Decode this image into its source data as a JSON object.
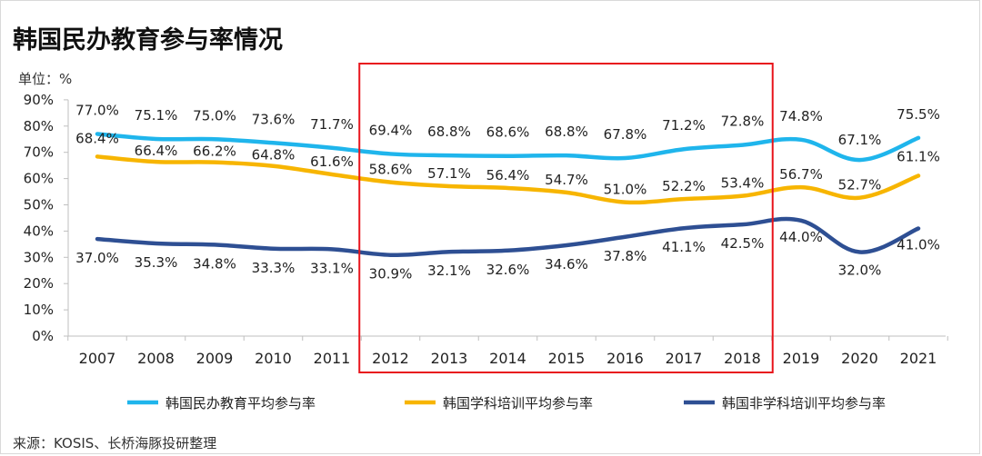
{
  "title": "韩国民办教育参与率情况",
  "unit_label": "单位：%",
  "source": "来源：KOSIS、长桥海豚投研整理",
  "chart_data": {
    "type": "line",
    "categories": [
      "2007",
      "2008",
      "2009",
      "2010",
      "2011",
      "2012",
      "2013",
      "2014",
      "2015",
      "2016",
      "2017",
      "2018",
      "2019",
      "2020",
      "2021"
    ],
    "ylim": [
      0,
      90
    ],
    "ytick_labels": [
      "0%",
      "10%",
      "20%",
      "30%",
      "40%",
      "50%",
      "60%",
      "70%",
      "80%",
      "90%"
    ],
    "series": [
      {
        "name": "韩国民办教育平均参与率",
        "color": "#1fb5ec",
        "values": [
          77.0,
          75.1,
          75.0,
          73.6,
          71.7,
          69.4,
          68.8,
          68.6,
          68.8,
          67.8,
          71.2,
          72.8,
          74.8,
          67.1,
          75.5
        ],
        "labels": [
          "77.0%",
          "75.1%",
          "75.0%",
          "73.6%",
          "71.7%",
          "69.4%",
          "68.8%",
          "68.6%",
          "68.8%",
          "67.8%",
          "71.2%",
          "72.8%",
          "74.8%",
          "67.1%",
          "75.5%"
        ]
      },
      {
        "name": "韩国学科培训平均参与率",
        "color": "#f7b500",
        "values": [
          68.4,
          66.4,
          66.2,
          64.8,
          61.6,
          58.6,
          57.1,
          56.4,
          54.7,
          51.0,
          52.2,
          53.4,
          56.7,
          52.7,
          61.1
        ],
        "labels": [
          "68.4%",
          "66.4%",
          "66.2%",
          "64.8%",
          "61.6%",
          "58.6%",
          "57.1%",
          "56.4%",
          "54.7%",
          "51.0%",
          "52.2%",
          "53.4%",
          "56.7%",
          "52.7%",
          "61.1%"
        ]
      },
      {
        "name": "韩国非学科培训平均参与率",
        "color": "#2e4f93",
        "values": [
          37.0,
          35.3,
          34.8,
          33.3,
          33.1,
          30.9,
          32.1,
          32.6,
          34.6,
          37.8,
          41.1,
          42.5,
          44.0,
          32.0,
          41.0
        ],
        "labels": [
          "37.0%",
          "35.3%",
          "34.8%",
          "33.3%",
          "33.1%",
          "30.9%",
          "32.1%",
          "32.6%",
          "34.6%",
          "37.8%",
          "41.1%",
          "42.5%",
          "44.0%",
          "32.0%",
          "41.0%"
        ]
      }
    ],
    "highlight_range": [
      "2012",
      "2018"
    ],
    "highlight_color": "#e8141b",
    "grid": false,
    "legend_position": "bottom"
  }
}
